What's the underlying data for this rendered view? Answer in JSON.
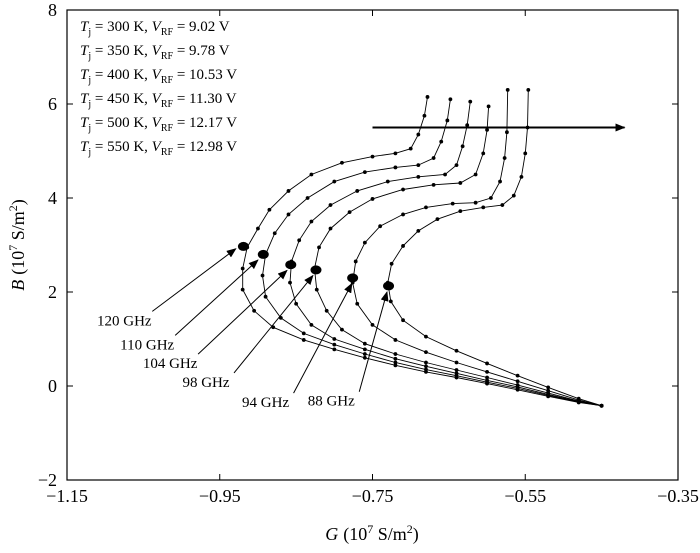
{
  "chart_data": {
    "type": "line",
    "xlabel_var": "G",
    "xlabel_unit_pre": "(10",
    "xlabel_exp": "7",
    "xlabel_unit_post": " S/m",
    "xlabel_sq": "2",
    "xlabel_close": ")",
    "ylabel_var": "B",
    "ylabel_unit_pre": "(10",
    "ylabel_exp": "7",
    "ylabel_unit_post": " S/m",
    "ylabel_sq": "2",
    "ylabel_close": ")",
    "xlim": [
      -1.15,
      -0.35
    ],
    "ylim": [
      -2,
      8
    ],
    "x_ticks": [
      -1.15,
      -0.95,
      -0.75,
      -0.55,
      -0.35
    ],
    "x_tick_labels": [
      "−1.15",
      "−0.95",
      "−0.75",
      "−0.55",
      "−0.35"
    ],
    "y_ticks": [
      -2,
      0,
      2,
      4,
      6,
      8
    ],
    "y_tick_labels": [
      "−2",
      "0",
      "2",
      "4",
      "6",
      "8"
    ],
    "grid": false,
    "legend_position": "top-left",
    "series": [
      {
        "name": "T_j = 300 K, V_RF = 9.02 V",
        "legend": {
          "t_sym": "T",
          "t_sub": "j",
          "t_val": " = 300 K, ",
          "v_sym": "V",
          "v_sub": "RF",
          "v_val": " = 9.02 V"
        },
        "points": [
          [
            -0.45,
            -0.42
          ],
          [
            -0.48,
            -0.35
          ],
          [
            -0.52,
            -0.22
          ],
          [
            -0.56,
            -0.08
          ],
          [
            -0.6,
            0.05
          ],
          [
            -0.64,
            0.18
          ],
          [
            -0.68,
            0.3
          ],
          [
            -0.72,
            0.44
          ],
          [
            -0.76,
            0.6
          ],
          [
            -0.8,
            0.78
          ],
          [
            -0.84,
            0.98
          ],
          [
            -0.88,
            1.25
          ],
          [
            -0.905,
            1.6
          ],
          [
            -0.92,
            2.05
          ],
          [
            -0.92,
            2.5
          ],
          [
            -0.914,
            2.95
          ],
          [
            -0.9,
            3.35
          ],
          [
            -0.885,
            3.75
          ],
          [
            -0.86,
            4.15
          ],
          [
            -0.83,
            4.5
          ],
          [
            -0.79,
            4.75
          ],
          [
            -0.75,
            4.88
          ],
          [
            -0.72,
            4.95
          ],
          [
            -0.7,
            5.05
          ],
          [
            -0.69,
            5.35
          ],
          [
            -0.682,
            5.75
          ],
          [
            -0.678,
            6.15
          ]
        ],
        "marker": {
          "freq_label": "120 GHz",
          "x": -0.919,
          "y": 2.97
        }
      },
      {
        "name": "T_j = 350 K, V_RF = 9.78 V",
        "legend": {
          "t_sym": "T",
          "t_sub": "j",
          "t_val": " = 350 K, ",
          "v_sym": "V",
          "v_sub": "RF",
          "v_val": " = 9.78 V"
        },
        "points": [
          [
            -0.45,
            -0.42
          ],
          [
            -0.48,
            -0.34
          ],
          [
            -0.52,
            -0.2
          ],
          [
            -0.56,
            -0.05
          ],
          [
            -0.6,
            0.08
          ],
          [
            -0.64,
            0.22
          ],
          [
            -0.68,
            0.35
          ],
          [
            -0.72,
            0.5
          ],
          [
            -0.76,
            0.68
          ],
          [
            -0.8,
            0.88
          ],
          [
            -0.84,
            1.12
          ],
          [
            -0.87,
            1.45
          ],
          [
            -0.89,
            1.9
          ],
          [
            -0.894,
            2.35
          ],
          [
            -0.89,
            2.8
          ],
          [
            -0.878,
            3.25
          ],
          [
            -0.86,
            3.65
          ],
          [
            -0.835,
            4.0
          ],
          [
            -0.8,
            4.35
          ],
          [
            -0.76,
            4.55
          ],
          [
            -0.72,
            4.65
          ],
          [
            -0.69,
            4.7
          ],
          [
            -0.67,
            4.85
          ],
          [
            -0.66,
            5.2
          ],
          [
            -0.652,
            5.65
          ],
          [
            -0.648,
            6.1
          ]
        ],
        "marker": {
          "freq_label": "110 GHz",
          "x": -0.893,
          "y": 2.8
        }
      },
      {
        "name": "T_j = 400 K, V_RF = 10.53 V",
        "legend": {
          "t_sym": "T",
          "t_sub": "j",
          "t_val": " = 400 K, ",
          "v_sym": "V",
          "v_sub": "RF",
          "v_val": " = 10.53 V"
        },
        "points": [
          [
            -0.45,
            -0.42
          ],
          [
            -0.48,
            -0.33
          ],
          [
            -0.52,
            -0.18
          ],
          [
            -0.56,
            -0.02
          ],
          [
            -0.6,
            0.12
          ],
          [
            -0.64,
            0.27
          ],
          [
            -0.68,
            0.42
          ],
          [
            -0.72,
            0.58
          ],
          [
            -0.76,
            0.78
          ],
          [
            -0.8,
            1.0
          ],
          [
            -0.83,
            1.3
          ],
          [
            -0.85,
            1.75
          ],
          [
            -0.858,
            2.2
          ],
          [
            -0.856,
            2.65
          ],
          [
            -0.846,
            3.1
          ],
          [
            -0.83,
            3.5
          ],
          [
            -0.805,
            3.85
          ],
          [
            -0.77,
            4.15
          ],
          [
            -0.73,
            4.35
          ],
          [
            -0.69,
            4.45
          ],
          [
            -0.655,
            4.5
          ],
          [
            -0.64,
            4.7
          ],
          [
            -0.632,
            5.1
          ],
          [
            -0.626,
            5.55
          ],
          [
            -0.622,
            6.05
          ]
        ],
        "marker": {
          "freq_label": "104 GHz",
          "x": -0.857,
          "y": 2.58
        }
      },
      {
        "name": "T_j = 450 K, V_RF = 11.30 V",
        "legend": {
          "t_sym": "T",
          "t_sub": "j",
          "t_val": " = 450 K, ",
          "v_sym": "V",
          "v_sub": "RF",
          "v_val": " = 11.30 V"
        },
        "points": [
          [
            -0.45,
            -0.42
          ],
          [
            -0.48,
            -0.32
          ],
          [
            -0.52,
            -0.15
          ],
          [
            -0.56,
            0.02
          ],
          [
            -0.6,
            0.18
          ],
          [
            -0.64,
            0.34
          ],
          [
            -0.68,
            0.5
          ],
          [
            -0.72,
            0.68
          ],
          [
            -0.76,
            0.9
          ],
          [
            -0.79,
            1.2
          ],
          [
            -0.81,
            1.6
          ],
          [
            -0.823,
            2.05
          ],
          [
            -0.826,
            2.5
          ],
          [
            -0.82,
            2.95
          ],
          [
            -0.805,
            3.35
          ],
          [
            -0.78,
            3.7
          ],
          [
            -0.75,
            3.98
          ],
          [
            -0.71,
            4.18
          ],
          [
            -0.67,
            4.28
          ],
          [
            -0.635,
            4.32
          ],
          [
            -0.615,
            4.5
          ],
          [
            -0.605,
            4.95
          ],
          [
            -0.6,
            5.45
          ],
          [
            -0.598,
            5.95
          ]
        ],
        "marker": {
          "freq_label": "98 GHz",
          "x": -0.824,
          "y": 2.47
        }
      },
      {
        "name": "T_j = 500 K, V_RF = 12.17 V",
        "legend": {
          "t_sym": "T",
          "t_sub": "j",
          "t_val": " = 500 K, ",
          "v_sym": "V",
          "v_sub": "RF",
          "v_val": " = 12.17 V"
        },
        "points": [
          [
            -0.45,
            -0.42
          ],
          [
            -0.48,
            -0.3
          ],
          [
            -0.52,
            -0.1
          ],
          [
            -0.56,
            0.1
          ],
          [
            -0.6,
            0.3
          ],
          [
            -0.64,
            0.5
          ],
          [
            -0.68,
            0.72
          ],
          [
            -0.72,
            0.98
          ],
          [
            -0.75,
            1.3
          ],
          [
            -0.77,
            1.75
          ],
          [
            -0.776,
            2.2
          ],
          [
            -0.772,
            2.65
          ],
          [
            -0.76,
            3.05
          ],
          [
            -0.74,
            3.4
          ],
          [
            -0.71,
            3.65
          ],
          [
            -0.68,
            3.8
          ],
          [
            -0.645,
            3.88
          ],
          [
            -0.615,
            3.9
          ],
          [
            -0.595,
            4.0
          ],
          [
            -0.583,
            4.35
          ],
          [
            -0.577,
            4.85
          ],
          [
            -0.574,
            5.4
          ],
          [
            -0.573,
            6.3
          ]
        ],
        "marker": {
          "freq_label": "94 GHz",
          "x": -0.776,
          "y": 2.3
        }
      },
      {
        "name": "T_j = 550 K, V_RF = 12.98 V",
        "legend": {
          "t_sym": "T",
          "t_sub": "j",
          "t_val": " = 550 K, ",
          "v_sym": "V",
          "v_sub": "RF",
          "v_val": " = 12.98 V"
        },
        "points": [
          [
            -0.45,
            -0.42
          ],
          [
            -0.48,
            -0.27
          ],
          [
            -0.52,
            -0.03
          ],
          [
            -0.56,
            0.22
          ],
          [
            -0.6,
            0.48
          ],
          [
            -0.64,
            0.75
          ],
          [
            -0.68,
            1.05
          ],
          [
            -0.71,
            1.4
          ],
          [
            -0.726,
            1.8
          ],
          [
            -0.73,
            2.2
          ],
          [
            -0.725,
            2.6
          ],
          [
            -0.71,
            2.98
          ],
          [
            -0.69,
            3.3
          ],
          [
            -0.665,
            3.55
          ],
          [
            -0.635,
            3.72
          ],
          [
            -0.605,
            3.8
          ],
          [
            -0.58,
            3.85
          ],
          [
            -0.565,
            4.05
          ],
          [
            -0.555,
            4.45
          ],
          [
            -0.55,
            4.95
          ],
          [
            -0.547,
            5.5
          ],
          [
            -0.546,
            6.3
          ]
        ],
        "marker": {
          "freq_label": "88 GHz",
          "x": -0.729,
          "y": 2.13
        }
      }
    ],
    "annotations": [
      {
        "text": "120 GHz",
        "label_x": -1.075,
        "label_y": 1.29,
        "tip_x": -0.929,
        "tip_y": 2.92
      },
      {
        "text": "110 GHz",
        "label_x": -1.045,
        "label_y": 0.78,
        "tip_x": -0.9,
        "tip_y": 2.68
      },
      {
        "text": "104 GHz",
        "label_x": -1.015,
        "label_y": 0.38,
        "tip_x": -0.862,
        "tip_y": 2.46
      },
      {
        "text": "98 GHz",
        "label_x": -0.968,
        "label_y": -0.02,
        "tip_x": -0.828,
        "tip_y": 2.35
      },
      {
        "text": "94 GHz",
        "label_x": -0.89,
        "label_y": -0.45,
        "tip_x": -0.777,
        "tip_y": 2.18
      },
      {
        "text": "88 GHz",
        "label_x": -0.804,
        "label_y": -0.42,
        "tip_x": -0.731,
        "tip_y": 2.0
      }
    ],
    "trend_arrow": {
      "from": [
        -0.75,
        5.5
      ],
      "to": [
        -0.42,
        5.5
      ]
    }
  }
}
